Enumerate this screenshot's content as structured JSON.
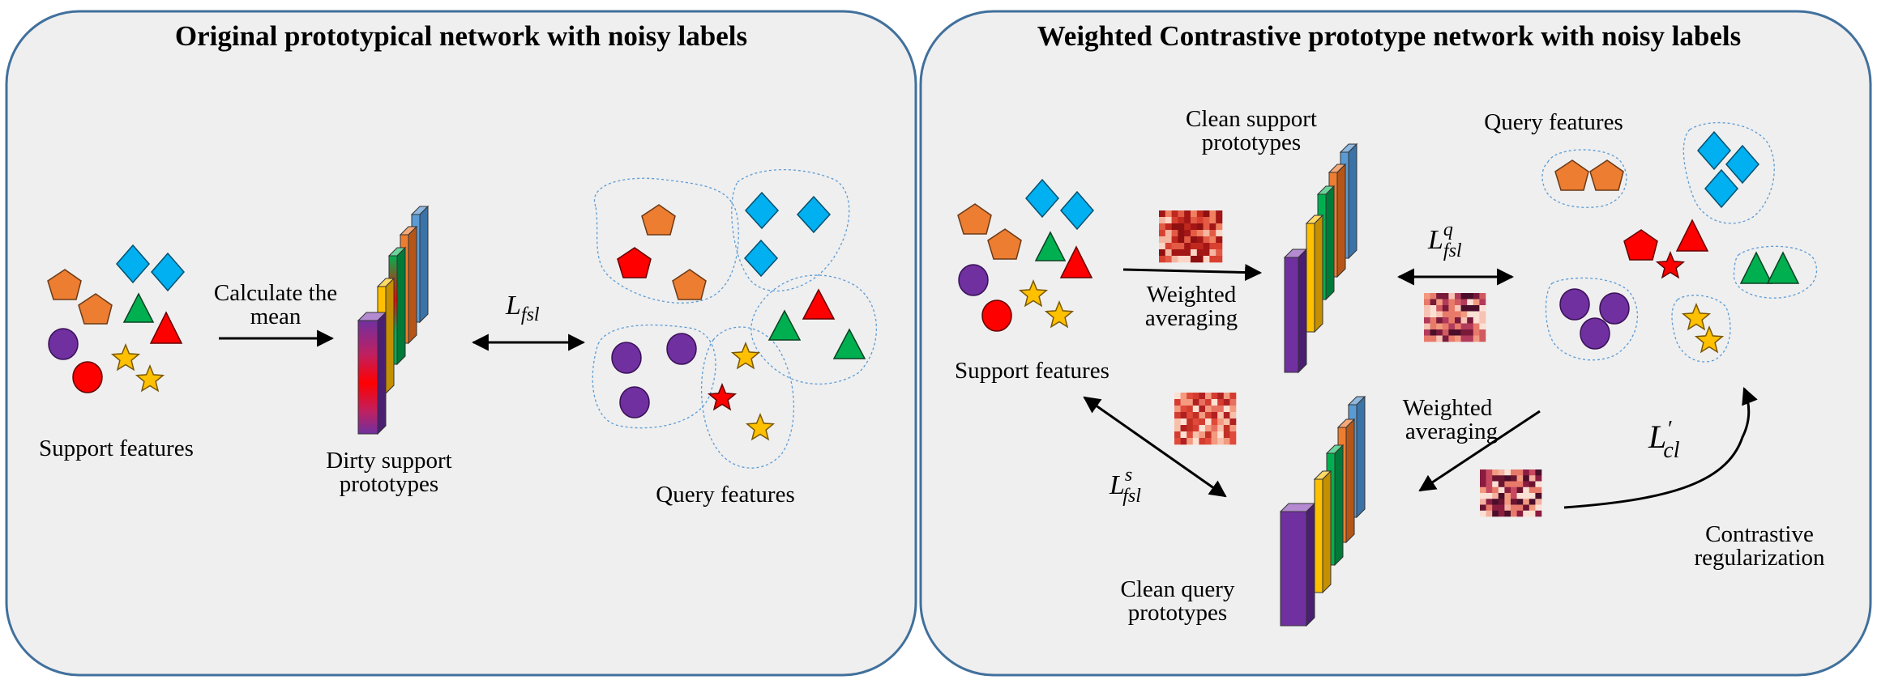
{
  "left_panel": {
    "title": "Original prototypical network with noisy labels",
    "support_label": "Support features",
    "arrow_label_line1": "Calculate the",
    "arrow_label_line2": "mean",
    "prototype_label_line1": "Dirty support",
    "prototype_label_line2": "prototypes",
    "loss_symbol": "L",
    "loss_subscript": "fsl",
    "query_label": "Query features"
  },
  "right_panel": {
    "title": "Weighted Contrastive prototype network with noisy labels",
    "support_label": "Support features",
    "weighted_label_1_line1": "Weighted",
    "weighted_label_1_line2": "averaging",
    "clean_support_line1": "Clean support",
    "clean_support_line2": "prototypes",
    "query_label": "Query features",
    "loss_q_symbol": "L",
    "loss_q_sup": "q",
    "loss_q_sub": "fsl",
    "loss_s_symbol": "L",
    "loss_s_sup": "s",
    "loss_s_sub": "fsl",
    "weighted_label_2_line1": "Weighted",
    "weighted_label_2_line2": "averaging",
    "clean_query_line1": "Clean query",
    "clean_query_line2": "prototypes",
    "loss_cl_symbol": "L",
    "loss_cl_prime": "′",
    "loss_cl_sub": "cl",
    "contrastive_line1": "Contrastive",
    "contrastive_line2": "regularization"
  },
  "colors": {
    "panel_fill": "#efefef",
    "panel_border": "#41709c",
    "orange": "#ed7d31",
    "blue": "#00b0f0",
    "green": "#00b050",
    "red": "#ff0000",
    "purple": "#7030a0",
    "yellow": "#ffc000",
    "bar_blue": "#5b9bd5"
  }
}
